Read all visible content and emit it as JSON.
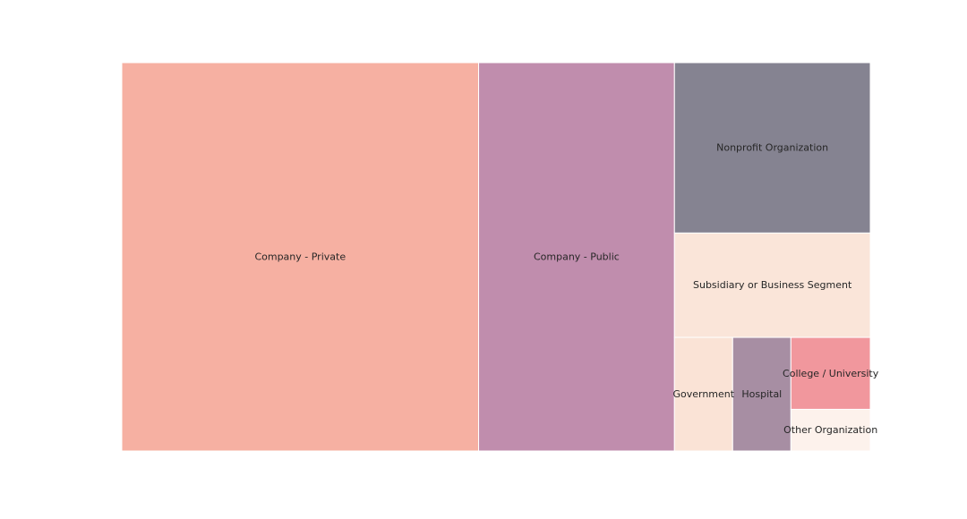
{
  "chart_data": {
    "type": "treemap",
    "title": "",
    "nodes": [
      {
        "label": "Company - Private",
        "value": 4610,
        "color": "#f6b0a2"
      },
      {
        "label": "Company - Public",
        "value": 2530,
        "color": "#c08dad"
      },
      {
        "label": "Nonprofit Organization",
        "value": 1110,
        "color": "#858391"
      },
      {
        "label": "Subsidiary or Business Segment",
        "value": 680,
        "color": "#fae5d9"
      },
      {
        "label": "Government",
        "value": 220,
        "color": "#fae3d6"
      },
      {
        "label": "Hospital",
        "value": 220,
        "color": "#a78ea3"
      },
      {
        "label": "College / University",
        "value": 190,
        "color": "#f1979d"
      },
      {
        "label": "Other Organization",
        "value": 110,
        "color": "#fdf2ec"
      }
    ]
  }
}
